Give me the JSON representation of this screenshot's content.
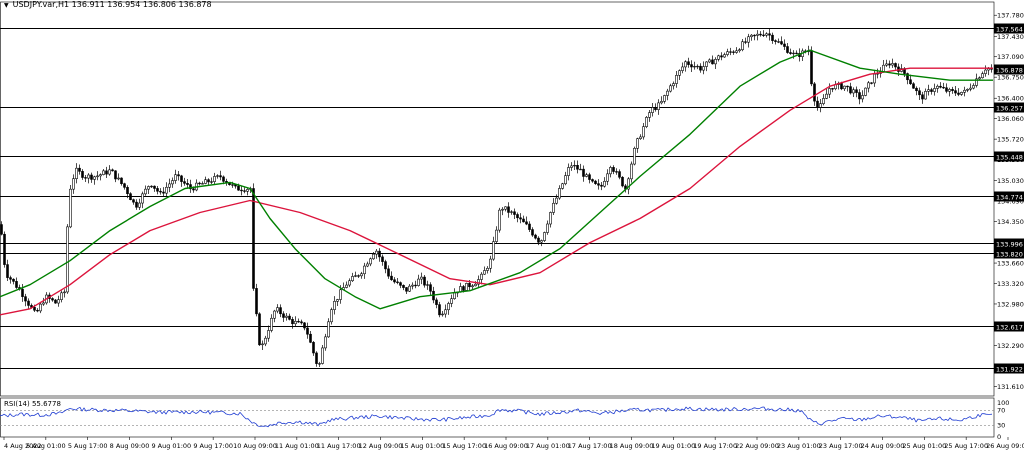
{
  "header": {
    "symbol_line": "USDJPY.var,H1  136.911 136.954 136.806 136.878"
  },
  "rsi": {
    "label": "RSI(14) 55.6778",
    "levels": [
      30,
      70
    ],
    "range": [
      0,
      100
    ],
    "scale_labels": [
      "100",
      "70",
      "30",
      "0"
    ]
  },
  "colors": {
    "candle": "#000000",
    "ma_fast": "#008000",
    "ma_slow": "#dc143c",
    "rsi_line": "#1e3cd2",
    "level": "#000000",
    "price_tag_bg": "#000000",
    "price_tag_fg": "#ffffff"
  },
  "chart_data": {
    "type": "candlestick",
    "symbol": "USDJPY",
    "timeframe": "H1",
    "y_ticks": [
      "137.780",
      "137.430",
      "137.090",
      "136.750",
      "136.400",
      "136.060",
      "135.720",
      "135.380",
      "135.030",
      "134.690",
      "134.350",
      "134.000",
      "133.660",
      "133.320",
      "132.980",
      "132.630",
      "132.290",
      "131.610"
    ],
    "x_ticks": [
      "4 Aug 2022",
      "5 Aug 01:00",
      "5 Aug 17:00",
      "8 Aug 09:00",
      "9 Aug 01:00",
      "9 Aug 17:00",
      "10 Aug 09:00",
      "11 Aug 01:00",
      "11 Aug 17:00",
      "12 Aug 09:00",
      "15 Aug 01:00",
      "15 Aug 17:00",
      "16 Aug 09:00",
      "17 Aug 01:00",
      "17 Aug 17:00",
      "18 Aug 09:00",
      "19 Aug 01:00",
      "19 Aug 17:00",
      "22 Aug 09:00",
      "23 Aug 01:00",
      "23 Aug 17:00",
      "24 Aug 09:00",
      "25 Aug 01:00",
      "25 Aug 17:00",
      "26 Aug 09:00"
    ],
    "ylim": [
      131.45,
      137.9
    ],
    "current_price": 136.878,
    "levels": [
      {
        "price": 137.564,
        "label": "137.564"
      },
      {
        "price": 136.257,
        "label": "136.257"
      },
      {
        "price": 135.448,
        "label": "135.448"
      },
      {
        "price": 134.774,
        "label": "134.774"
      },
      {
        "price": 133.996,
        "label": "133.996"
      },
      {
        "price": 133.82,
        "label": "133.820"
      },
      {
        "price": 132.617,
        "label": "132.617"
      },
      {
        "price": 131.922,
        "label": "131.922"
      }
    ],
    "price_tag": {
      "price": 136.878,
      "label": "136.878"
    },
    "close_path": [
      [
        0,
        134.3
      ],
      [
        5,
        133.5
      ],
      [
        10,
        133.4
      ],
      [
        20,
        133.2
      ],
      [
        35,
        132.8
      ],
      [
        45,
        133.1
      ],
      [
        55,
        133.0
      ],
      [
        65,
        133.2
      ],
      [
        68,
        134.8
      ],
      [
        75,
        135.2
      ],
      [
        85,
        135.1
      ],
      [
        95,
        135.1
      ],
      [
        110,
        135.2
      ],
      [
        125,
        134.9
      ],
      [
        135,
        134.6
      ],
      [
        150,
        135.0
      ],
      [
        160,
        134.8
      ],
      [
        175,
        135.1
      ],
      [
        190,
        134.9
      ],
      [
        205,
        135.0
      ],
      [
        220,
        135.1
      ],
      [
        235,
        134.9
      ],
      [
        250,
        134.9
      ],
      [
        253,
        133.2
      ],
      [
        260,
        132.2
      ],
      [
        275,
        132.9
      ],
      [
        290,
        132.7
      ],
      [
        305,
        132.6
      ],
      [
        318,
        131.9
      ],
      [
        330,
        132.9
      ],
      [
        345,
        133.3
      ],
      [
        360,
        133.5
      ],
      [
        375,
        133.9
      ],
      [
        390,
        133.4
      ],
      [
        405,
        133.2
      ],
      [
        420,
        133.4
      ],
      [
        430,
        133.2
      ],
      [
        440,
        132.8
      ],
      [
        455,
        133.2
      ],
      [
        470,
        133.3
      ],
      [
        480,
        133.4
      ],
      [
        490,
        133.7
      ],
      [
        500,
        134.6
      ],
      [
        510,
        134.5
      ],
      [
        525,
        134.3
      ],
      [
        540,
        134.0
      ],
      [
        550,
        134.5
      ],
      [
        560,
        134.9
      ],
      [
        570,
        135.3
      ],
      [
        580,
        135.2
      ],
      [
        590,
        135.0
      ],
      [
        600,
        134.9
      ],
      [
        610,
        135.3
      ],
      [
        625,
        134.9
      ],
      [
        635,
        135.6
      ],
      [
        650,
        136.2
      ],
      [
        660,
        136.3
      ],
      [
        670,
        136.6
      ],
      [
        685,
        137.0
      ],
      [
        700,
        136.9
      ],
      [
        720,
        137.1
      ],
      [
        735,
        137.2
      ],
      [
        750,
        137.4
      ],
      [
        765,
        137.5
      ],
      [
        780,
        137.3
      ],
      [
        795,
        137.1
      ],
      [
        808,
        137.2
      ],
      [
        812,
        136.5
      ],
      [
        818,
        136.2
      ],
      [
        830,
        136.6
      ],
      [
        845,
        136.6
      ],
      [
        860,
        136.4
      ],
      [
        875,
        136.8
      ],
      [
        890,
        137.0
      ],
      [
        905,
        136.8
      ],
      [
        920,
        136.4
      ],
      [
        935,
        136.6
      ],
      [
        950,
        136.5
      ],
      [
        965,
        136.5
      ],
      [
        975,
        136.7
      ],
      [
        985,
        136.9
      ],
      [
        993,
        136.878
      ]
    ],
    "ma_fast_path": [
      [
        0,
        133.1
      ],
      [
        30,
        133.3
      ],
      [
        70,
        133.7
      ],
      [
        110,
        134.2
      ],
      [
        150,
        134.6
      ],
      [
        185,
        134.9
      ],
      [
        230,
        135.0
      ],
      [
        250,
        134.9
      ],
      [
        270,
        134.4
      ],
      [
        295,
        133.9
      ],
      [
        325,
        133.4
      ],
      [
        355,
        133.1
      ],
      [
        380,
        132.9
      ],
      [
        420,
        133.1
      ],
      [
        470,
        133.2
      ],
      [
        520,
        133.5
      ],
      [
        560,
        133.9
      ],
      [
        600,
        134.5
      ],
      [
        640,
        135.1
      ],
      [
        690,
        135.8
      ],
      [
        740,
        136.6
      ],
      [
        780,
        137.0
      ],
      [
        810,
        137.2
      ],
      [
        860,
        136.9
      ],
      [
        900,
        136.8
      ],
      [
        950,
        136.7
      ],
      [
        993,
        136.7
      ]
    ],
    "ma_slow_path": [
      [
        0,
        132.8
      ],
      [
        30,
        132.9
      ],
      [
        70,
        133.3
      ],
      [
        110,
        133.8
      ],
      [
        150,
        134.2
      ],
      [
        200,
        134.5
      ],
      [
        250,
        134.7
      ],
      [
        300,
        134.5
      ],
      [
        350,
        134.2
      ],
      [
        400,
        133.8
      ],
      [
        450,
        133.4
      ],
      [
        490,
        133.3
      ],
      [
        540,
        133.5
      ],
      [
        590,
        134.0
      ],
      [
        640,
        134.4
      ],
      [
        690,
        134.9
      ],
      [
        740,
        135.6
      ],
      [
        790,
        136.2
      ],
      [
        830,
        136.6
      ],
      [
        870,
        136.8
      ],
      [
        910,
        136.9
      ],
      [
        950,
        136.9
      ],
      [
        993,
        136.9
      ]
    ],
    "rsi_path": [
      [
        0,
        55
      ],
      [
        20,
        60
      ],
      [
        40,
        58
      ],
      [
        60,
        62
      ],
      [
        70,
        75
      ],
      [
        90,
        72
      ],
      [
        120,
        70
      ],
      [
        160,
        65
      ],
      [
        200,
        66
      ],
      [
        240,
        62
      ],
      [
        255,
        35
      ],
      [
        265,
        28
      ],
      [
        280,
        38
      ],
      [
        300,
        40
      ],
      [
        320,
        32
      ],
      [
        330,
        45
      ],
      [
        360,
        52
      ],
      [
        380,
        55
      ],
      [
        410,
        48
      ],
      [
        440,
        45
      ],
      [
        470,
        52
      ],
      [
        490,
        58
      ],
      [
        500,
        72
      ],
      [
        520,
        68
      ],
      [
        540,
        60
      ],
      [
        560,
        65
      ],
      [
        580,
        70
      ],
      [
        600,
        62
      ],
      [
        620,
        68
      ],
      [
        640,
        72
      ],
      [
        660,
        70
      ],
      [
        680,
        75
      ],
      [
        720,
        72
      ],
      [
        760,
        75
      ],
      [
        800,
        70
      ],
      [
        812,
        40
      ],
      [
        820,
        35
      ],
      [
        840,
        48
      ],
      [
        860,
        45
      ],
      [
        880,
        55
      ],
      [
        900,
        52
      ],
      [
        920,
        42
      ],
      [
        940,
        48
      ],
      [
        960,
        44
      ],
      [
        980,
        58
      ],
      [
        993,
        55.6778
      ]
    ]
  }
}
